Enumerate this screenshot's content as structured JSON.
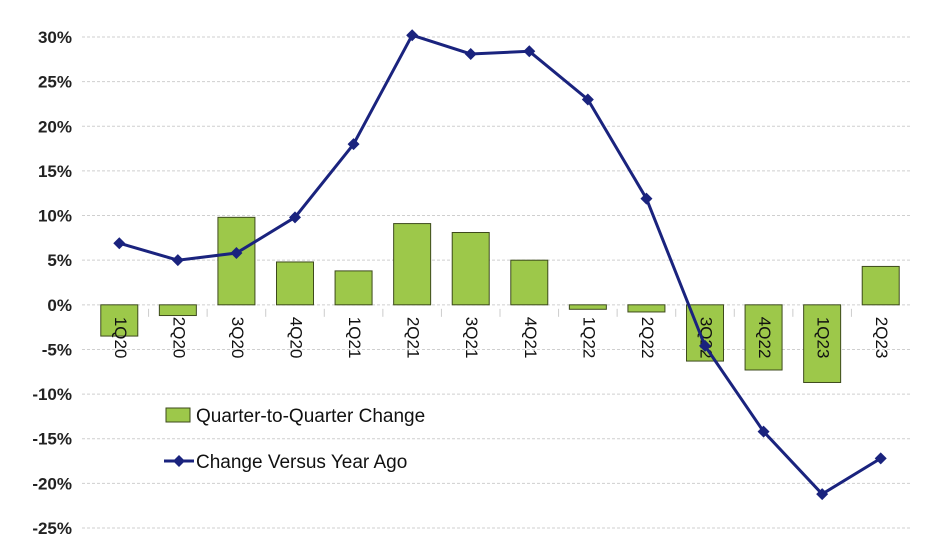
{
  "chart_data": {
    "type": "bar",
    "title": "",
    "xlabel": "",
    "ylabel": "",
    "ylim": [
      -25,
      30
    ],
    "yticks": [
      "30%",
      "25%",
      "20%",
      "15%",
      "10%",
      "5%",
      "0%",
      "-5%",
      "-10%",
      "-15%",
      "-20%",
      "-25%"
    ],
    "ytick_values": [
      30,
      25,
      20,
      15,
      10,
      5,
      0,
      -5,
      -10,
      -15,
      -20,
      -25
    ],
    "grid": true,
    "legend_placement": "bottom-left",
    "categories": [
      "1Q20",
      "2Q20",
      "3Q20",
      "4Q20",
      "1Q21",
      "2Q21",
      "3Q21",
      "4Q21",
      "1Q22",
      "2Q22",
      "3Q22",
      "4Q22",
      "1Q23",
      "2Q23"
    ],
    "series": [
      {
        "name": "Quarter-to-Quarter Change",
        "type": "bar",
        "color": "#9dc84a",
        "values": [
          -3.5,
          -1.2,
          9.8,
          4.8,
          3.8,
          9.1,
          8.1,
          5.0,
          -0.5,
          -0.8,
          -6.3,
          -7.3,
          -8.7,
          4.3
        ]
      },
      {
        "name": "Change Versus Year Ago",
        "type": "line",
        "color": "#1a237e",
        "marker": "diamond",
        "values": [
          6.9,
          5.0,
          5.8,
          9.8,
          18.0,
          30.2,
          28.1,
          28.4,
          23.0,
          11.9,
          -4.6,
          -14.2,
          -21.2,
          -17.2
        ]
      }
    ]
  }
}
